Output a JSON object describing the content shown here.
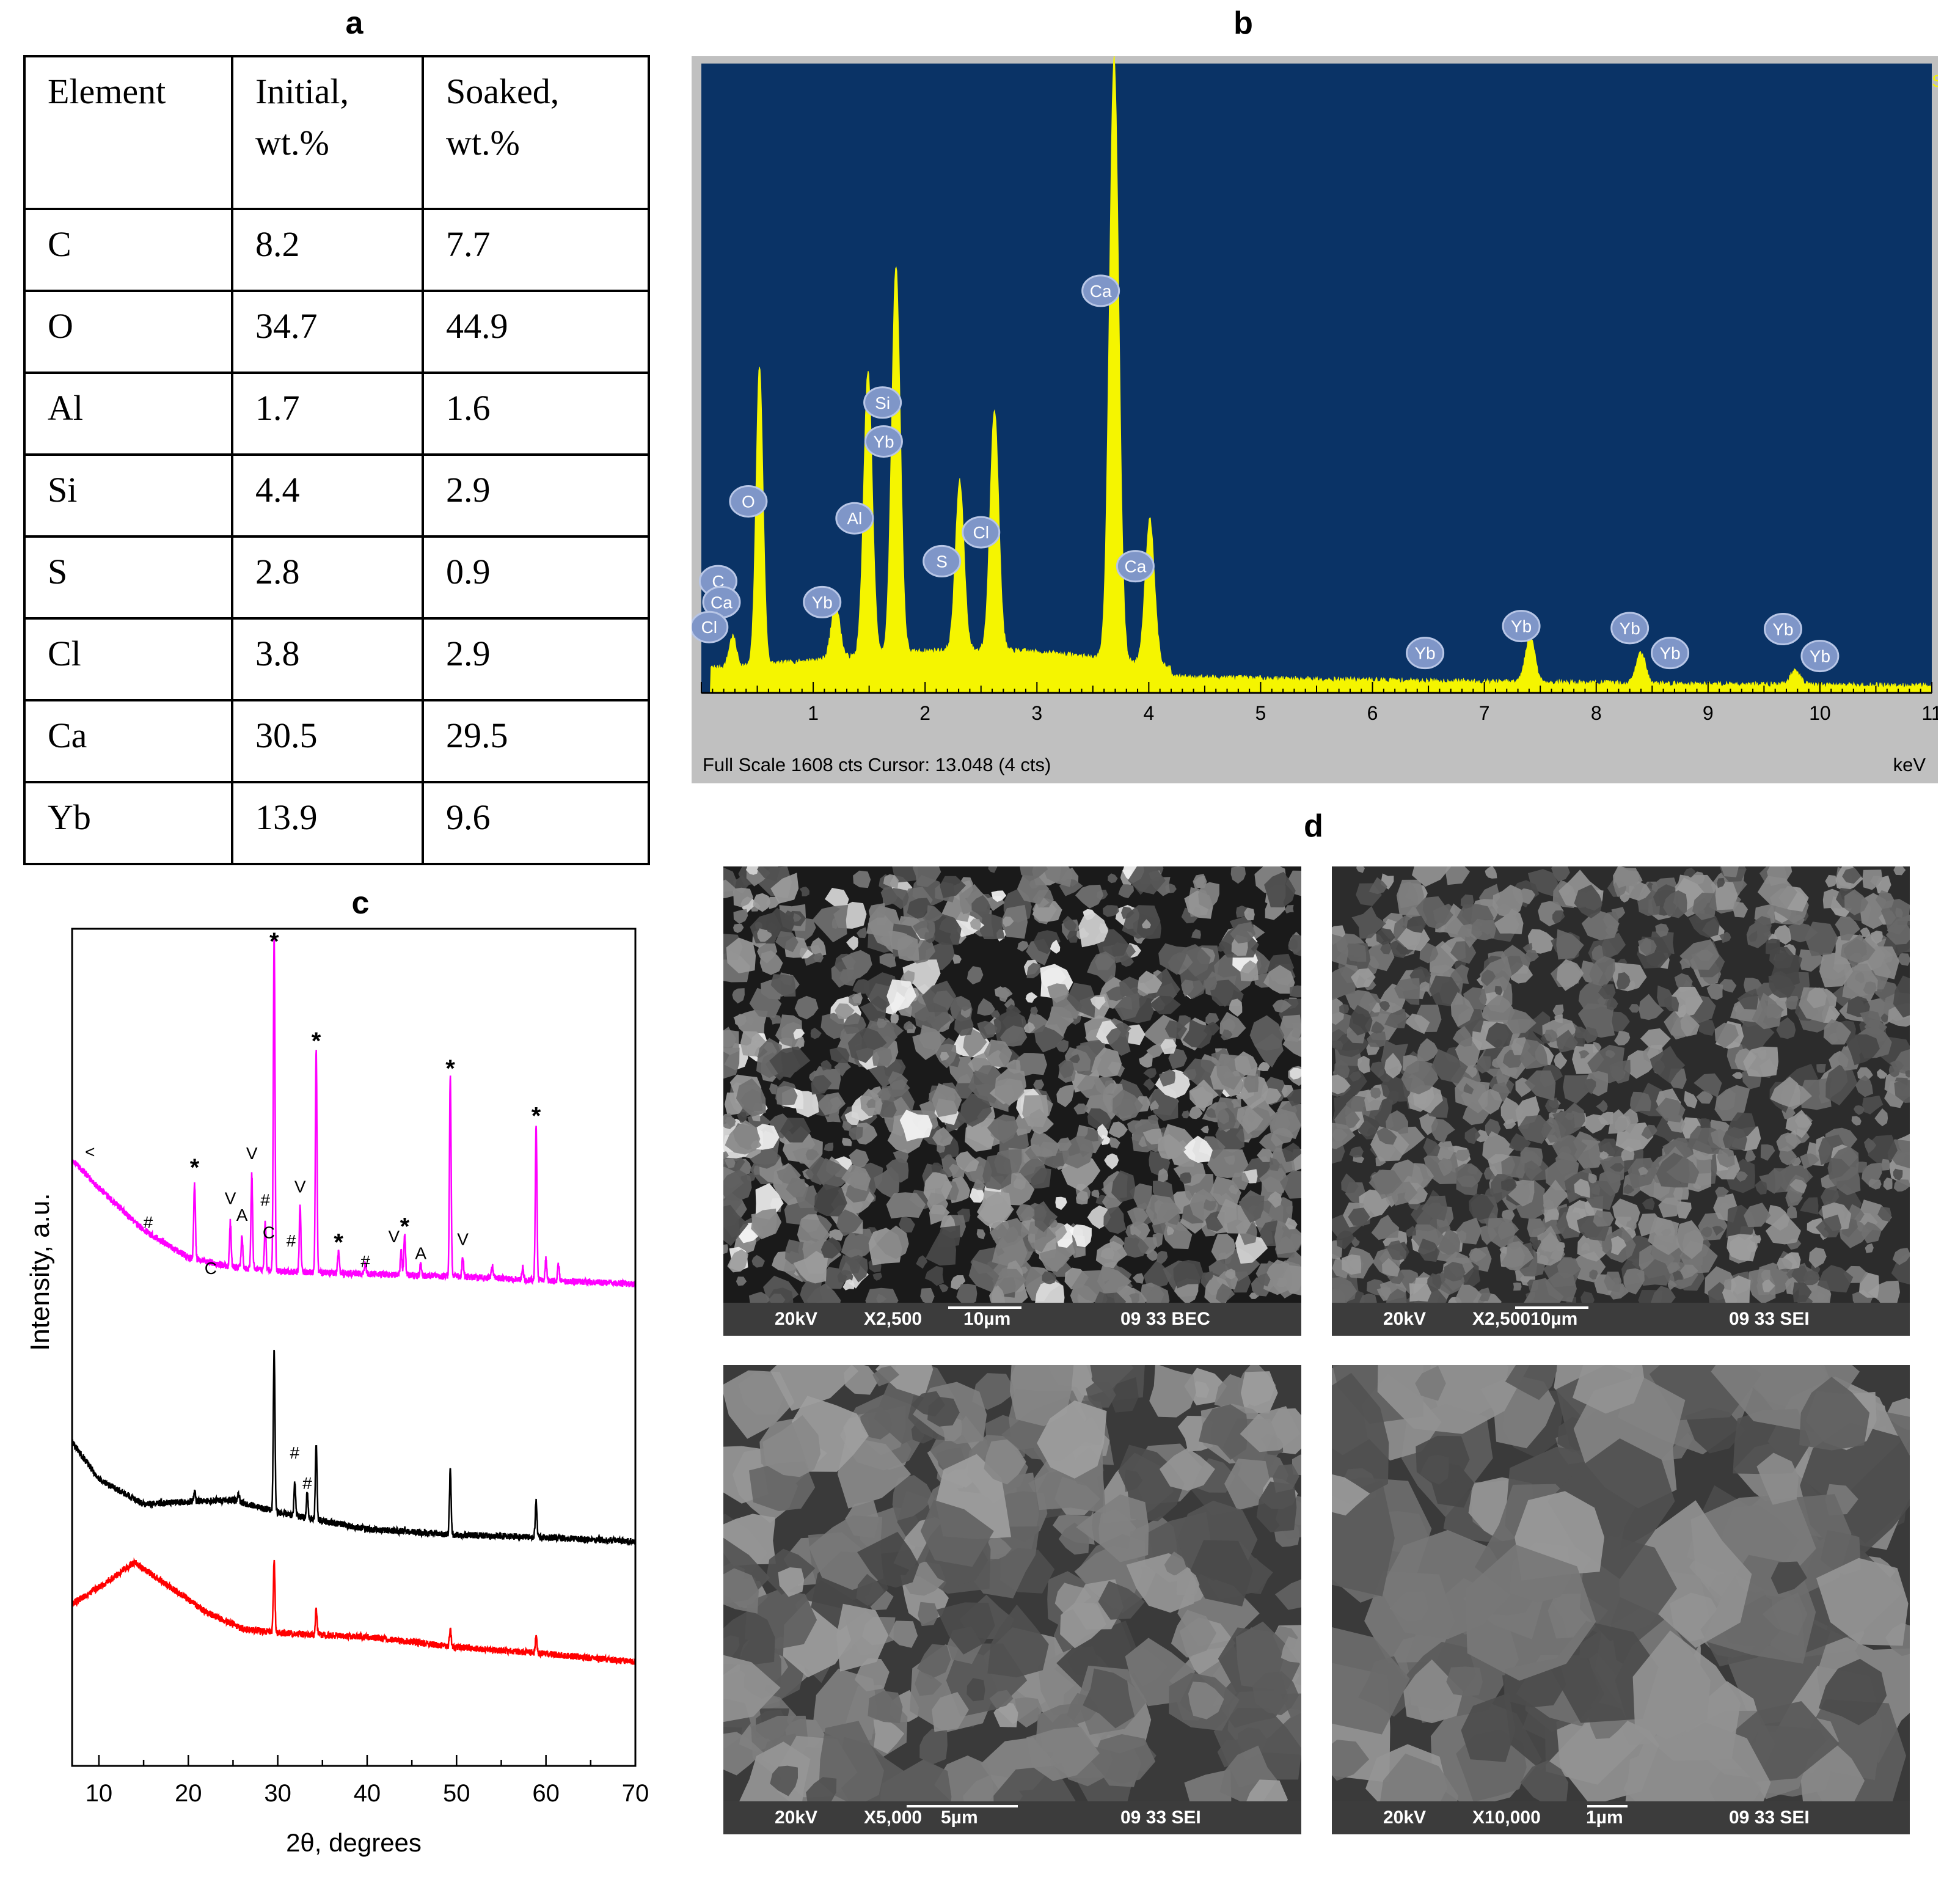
{
  "panels": {
    "a": "a",
    "b": "b",
    "c": "c",
    "d": "d"
  },
  "table": {
    "headers": [
      [
        "Element"
      ],
      [
        "Initial,",
        "wt.%"
      ],
      [
        "Soaked,",
        "wt.%"
      ]
    ],
    "rows": [
      [
        "C",
        "8.2",
        "7.7"
      ],
      [
        "O",
        "34.7",
        "44.9"
      ],
      [
        "Al",
        "1.7",
        "1.6"
      ],
      [
        "Si",
        "4.4",
        "2.9"
      ],
      [
        "S",
        "2.8",
        "0.9"
      ],
      [
        "Cl",
        "3.8",
        "2.9"
      ],
      [
        "Ca",
        "30.5",
        "29.5"
      ],
      [
        "Yb",
        "13.9",
        "9.6"
      ]
    ]
  },
  "eds": {
    "status": "Full Scale 1608 cts Cursor: 13.048  (4 cts)",
    "unit": "keV",
    "corner_mark": "S",
    "colors": {
      "background": "#0a3366",
      "spectrum": "#f5f500",
      "frame": "#c0c0c0"
    }
  },
  "xrd": {
    "ylabel": "Intensity, a.u.",
    "xlabel": "2θ, degrees",
    "peak_markers": [
      {
        "t": "<",
        "x": 9.0,
        "y": 0.732
      },
      {
        "t": "#",
        "x": 15.5,
        "y": 0.647
      },
      {
        "t": "*",
        "x": 20.7,
        "y": 0.728
      },
      {
        "t": "C",
        "x": 22.5,
        "y": 0.592
      },
      {
        "t": "V",
        "x": 24.7,
        "y": 0.676
      },
      {
        "t": "A",
        "x": 26.0,
        "y": 0.656
      },
      {
        "t": "V",
        "x": 27.1,
        "y": 0.73
      },
      {
        "t": "#",
        "x": 28.6,
        "y": 0.674
      },
      {
        "t": "C",
        "x": 29.0,
        "y": 0.635
      },
      {
        "t": "*",
        "x": 29.6,
        "y": 1.0
      },
      {
        "t": "#",
        "x": 31.5,
        "y": 0.625
      },
      {
        "t": "V",
        "x": 32.5,
        "y": 0.69
      },
      {
        "t": "*",
        "x": 34.3,
        "y": 0.88
      },
      {
        "t": "*",
        "x": 36.8,
        "y": 0.638
      },
      {
        "t": "#",
        "x": 39.8,
        "y": 0.6
      },
      {
        "t": "V",
        "x": 43.0,
        "y": 0.63
      },
      {
        "t": "*",
        "x": 44.2,
        "y": 0.657
      },
      {
        "t": "A",
        "x": 46.0,
        "y": 0.61
      },
      {
        "t": "*",
        "x": 49.3,
        "y": 0.847
      },
      {
        "t": "V",
        "x": 50.7,
        "y": 0.627
      },
      {
        "t": "*",
        "x": 58.9,
        "y": 0.79
      },
      {
        "t": "#",
        "x": 31.9,
        "y": 0.37
      },
      {
        "t": "#",
        "x": 33.3,
        "y": 0.333
      }
    ]
  },
  "chart_data": [
    {
      "type": "line",
      "title": "",
      "xlabel": "keV",
      "ylabel": "",
      "xlim": [
        0,
        11
      ],
      "ylim": [
        0,
        1608
      ],
      "peaks": [
        {
          "label": "C",
          "x": 0.28,
          "y": 80
        },
        {
          "label": "O",
          "x": 0.52,
          "y": 780
        },
        {
          "label": "Yb",
          "x": 1.2,
          "y": 140
        },
        {
          "label": "Al",
          "x": 1.49,
          "y": 740
        },
        {
          "label": "Si",
          "x": 1.74,
          "y": 1010
        },
        {
          "label": "S",
          "x": 2.31,
          "y": 440
        },
        {
          "label": "Cl",
          "x": 2.62,
          "y": 630
        },
        {
          "label": "Ca",
          "x": 3.69,
          "y": 1570
        },
        {
          "label": "Ca",
          "x": 4.01,
          "y": 380
        },
        {
          "label": "Yb",
          "x": 7.41,
          "y": 120
        },
        {
          "label": "Yb",
          "x": 8.4,
          "y": 80
        },
        {
          "label": "Yb",
          "x": 9.78,
          "y": 40
        }
      ],
      "peak_labels": [
        {
          "label": "C",
          "x": 0.15,
          "y": 560
        },
        {
          "label": "Ca",
          "x": 0.18,
          "y": 455
        },
        {
          "label": "Cl",
          "x": 0.07,
          "y": 330
        },
        {
          "label": "O",
          "x": 0.42,
          "y": 960
        },
        {
          "label": "Yb",
          "x": 1.08,
          "y": 455
        },
        {
          "label": "Al",
          "x": 1.37,
          "y": 875
        },
        {
          "label": "Si",
          "x": 1.62,
          "y": 1455
        },
        {
          "label": "Yb",
          "x": 1.63,
          "y": 1260
        },
        {
          "label": "S",
          "x": 2.15,
          "y": 660
        },
        {
          "label": "Cl",
          "x": 2.5,
          "y": 805
        },
        {
          "label": "Ca",
          "x": 3.57,
          "y": 2015
        },
        {
          "label": "Ca",
          "x": 3.88,
          "y": 635
        },
        {
          "label": "Yb",
          "x": 6.47,
          "y": 200
        },
        {
          "label": "Yb",
          "x": 7.33,
          "y": 335
        },
        {
          "label": "Yb",
          "x": 8.3,
          "y": 325
        },
        {
          "label": "Yb",
          "x": 8.66,
          "y": 200
        },
        {
          "label": "Yb",
          "x": 9.67,
          "y": 320
        },
        {
          "label": "Yb",
          "x": 10.0,
          "y": 185
        }
      ],
      "xticks": [
        1,
        2,
        3,
        4,
        5,
        6,
        7,
        8,
        9,
        10,
        11
      ]
    },
    {
      "type": "line",
      "title": "",
      "xlabel": "2θ, degrees",
      "ylabel": "Intensity, a.u.",
      "xlim": [
        7,
        70
      ],
      "ylim": [
        0,
        1
      ],
      "xticks": [
        10,
        20,
        30,
        40,
        50,
        60,
        70
      ],
      "series": [
        {
          "color": "#ff00ff",
          "baseline": [
            [
              7,
              0.73
            ],
            [
              10,
              0.695
            ],
            [
              15,
              0.645
            ],
            [
              20,
              0.612
            ],
            [
              25,
              0.6
            ],
            [
              30,
              0.595
            ],
            [
              40,
              0.592
            ],
            [
              50,
              0.589
            ],
            [
              60,
              0.584
            ],
            [
              70,
              0.58
            ]
          ],
          "peaks": [
            [
              20.7,
              0.7
            ],
            [
              24.7,
              0.655
            ],
            [
              26.0,
              0.64
            ],
            [
              27.1,
              0.712
            ],
            [
              28.6,
              0.655
            ],
            [
              29.6,
              1.0
            ],
            [
              32.5,
              0.672
            ],
            [
              34.3,
              0.862
            ],
            [
              36.8,
              0.62
            ],
            [
              39.8,
              0.605
            ],
            [
              43.8,
              0.62
            ],
            [
              44.2,
              0.64
            ],
            [
              46.0,
              0.603
            ],
            [
              49.3,
              0.83
            ],
            [
              50.7,
              0.612
            ],
            [
              54.0,
              0.603
            ],
            [
              57.4,
              0.6
            ],
            [
              58.9,
              0.77
            ],
            [
              60.0,
              0.61
            ],
            [
              61.4,
              0.603
            ]
          ]
        },
        {
          "color": "#000000",
          "baseline": [
            [
              7,
              0.39
            ],
            [
              10,
              0.345
            ],
            [
              15,
              0.315
            ],
            [
              20,
              0.318
            ],
            [
              25,
              0.32
            ],
            [
              30,
              0.305
            ],
            [
              40,
              0.285
            ],
            [
              50,
              0.278
            ],
            [
              60,
              0.275
            ],
            [
              70,
              0.27
            ]
          ],
          "peaks": [
            [
              20.7,
              0.33
            ],
            [
              25.6,
              0.33
            ],
            [
              29.6,
              0.502
            ],
            [
              31.9,
              0.34
            ],
            [
              33.3,
              0.33
            ],
            [
              34.3,
              0.388
            ],
            [
              44.2,
              0.285
            ],
            [
              49.3,
              0.355
            ],
            [
              58.9,
              0.32
            ]
          ]
        },
        {
          "color": "#ff0000",
          "baseline": [
            [
              7,
              0.195
            ],
            [
              10,
              0.215
            ],
            [
              14,
              0.245
            ],
            [
              18,
              0.215
            ],
            [
              22,
              0.185
            ],
            [
              26,
              0.165
            ],
            [
              30,
              0.16
            ],
            [
              40,
              0.155
            ],
            [
              50,
              0.143
            ],
            [
              60,
              0.135
            ],
            [
              70,
              0.125
            ]
          ],
          "peaks": [
            [
              29.6,
              0.245
            ],
            [
              34.3,
              0.19
            ],
            [
              49.3,
              0.165
            ],
            [
              58.9,
              0.155
            ]
          ]
        }
      ]
    }
  ],
  "sem": [
    {
      "voltage": "20kV",
      "mag": "X2,500",
      "scale": "10µm",
      "id": "09 33 BEC",
      "kind": "bec",
      "seed": 11
    },
    {
      "voltage": "20kV",
      "mag": "X2,500",
      "scale": "10µm",
      "id": "09 33 SEI",
      "kind": "sei1",
      "seed": 23
    },
    {
      "voltage": "20kV",
      "mag": "X5,000",
      "scale": "5µm",
      "id": "09 33 SEI",
      "kind": "sei2",
      "seed": 37
    },
    {
      "voltage": "20kV",
      "mag": "X10,000",
      "scale": "1µm",
      "id": "09 33 SEI",
      "kind": "sei3",
      "seed": 51
    }
  ]
}
